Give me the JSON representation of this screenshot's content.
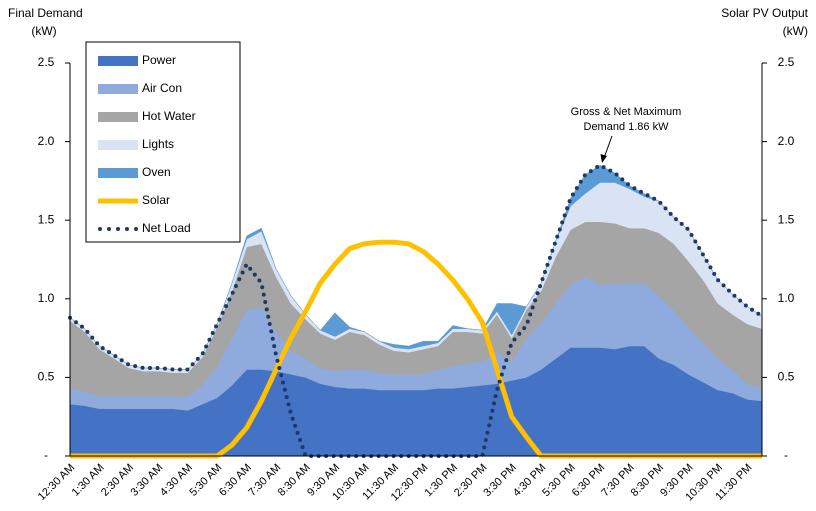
{
  "chart_data": {
    "type": "stacked_area_line",
    "ylabel": [
      "Final Demand",
      "(kW)"
    ],
    "y2label": [
      "Solar PV Output",
      "(kW)"
    ],
    "annotation": [
      "Gross & Net Maximum",
      "Demand 1.86 kW"
    ],
    "categories": [
      "12:30 AM",
      null,
      "1:30 AM",
      null,
      "2:30 AM",
      null,
      "3:30 AM",
      null,
      "4:30 AM",
      null,
      "5:30 AM",
      null,
      "6:30 AM",
      null,
      "7:30 AM",
      null,
      "8:30 AM",
      null,
      "9:30 AM",
      null,
      "10:30 AM",
      null,
      "11:30 AM",
      null,
      "12:30 PM",
      null,
      "1:30 PM",
      null,
      "2:30 PM",
      null,
      "3:30 PM",
      null,
      "4:30 PM",
      null,
      "5:30 PM",
      null,
      "6:30 PM",
      null,
      "7:30 PM",
      null,
      "8:30 PM",
      null,
      "9:30 PM",
      null,
      "10:30 PM",
      null,
      "11:30 PM",
      null
    ],
    "ylim": [
      0,
      2.5
    ],
    "yticks": [
      {
        "value": 0,
        "label": "-"
      },
      0.5,
      {
        "value": 1,
        "label": "1.0"
      },
      1.5,
      {
        "value": 2,
        "label": "2.0"
      },
      2.5
    ],
    "y2lim": [
      0,
      2.5
    ],
    "y2ticks": [
      {
        "value": 0,
        "label": "-"
      },
      0.5,
      {
        "value": 1,
        "label": "1.0"
      },
      1.5,
      {
        "value": 2,
        "label": "2.0"
      },
      2.5
    ],
    "legend": "upper left",
    "series": [
      {
        "name": "Power",
        "kind": "area",
        "color": "#4472c4",
        "values": [
          0.33,
          0.32,
          0.3,
          0.3,
          0.3,
          0.3,
          0.3,
          0.3,
          0.29,
          0.33,
          0.37,
          0.45,
          0.55,
          0.55,
          0.54,
          0.52,
          0.5,
          0.46,
          0.44,
          0.43,
          0.43,
          0.42,
          0.42,
          0.42,
          0.42,
          0.43,
          0.43,
          0.44,
          0.45,
          0.46,
          0.48,
          0.5,
          0.55,
          0.62,
          0.69,
          0.69,
          0.69,
          0.68,
          0.7,
          0.7,
          0.62,
          0.58,
          0.52,
          0.47,
          0.42,
          0.4,
          0.36,
          0.35
        ]
      },
      {
        "name": "Air Con",
        "kind": "area",
        "color": "#8faadc",
        "values": [
          0.1,
          0.09,
          0.08,
          0.08,
          0.08,
          0.08,
          0.08,
          0.08,
          0.09,
          0.12,
          0.2,
          0.3,
          0.38,
          0.4,
          0.25,
          0.15,
          0.12,
          0.1,
          0.1,
          0.12,
          0.12,
          0.11,
          0.1,
          0.1,
          0.1,
          0.12,
          0.14,
          0.15,
          0.15,
          0.2,
          0.12,
          0.25,
          0.3,
          0.35,
          0.4,
          0.45,
          0.4,
          0.42,
          0.4,
          0.4,
          0.4,
          0.35,
          0.3,
          0.25,
          0.2,
          0.15,
          0.1,
          0.08
        ]
      },
      {
        "name": "Hot Water",
        "kind": "area",
        "color": "#a5a5a5",
        "values": [
          0.43,
          0.38,
          0.3,
          0.24,
          0.18,
          0.16,
          0.16,
          0.15,
          0.15,
          0.18,
          0.25,
          0.3,
          0.4,
          0.4,
          0.35,
          0.3,
          0.25,
          0.22,
          0.2,
          0.24,
          0.22,
          0.18,
          0.15,
          0.14,
          0.16,
          0.15,
          0.22,
          0.2,
          0.18,
          0.24,
          0.15,
          0.18,
          0.2,
          0.3,
          0.35,
          0.35,
          0.4,
          0.38,
          0.35,
          0.35,
          0.4,
          0.42,
          0.42,
          0.4,
          0.35,
          0.35,
          0.38,
          0.38
        ]
      },
      {
        "name": "Lights",
        "kind": "area",
        "color": "#dae3f3",
        "values": [
          0.02,
          0.02,
          0.02,
          0.02,
          0.02,
          0.02,
          0.02,
          0.02,
          0.02,
          0.02,
          0.02,
          0.05,
          0.05,
          0.08,
          0.05,
          0.05,
          0.03,
          0.02,
          0.02,
          0.02,
          0.02,
          0.02,
          0.02,
          0.02,
          0.02,
          0.02,
          0.02,
          0.02,
          0.02,
          0.02,
          0.02,
          0.02,
          0.05,
          0.1,
          0.15,
          0.18,
          0.25,
          0.26,
          0.25,
          0.2,
          0.2,
          0.17,
          0.2,
          0.16,
          0.15,
          0.13,
          0.11,
          0.08
        ]
      },
      {
        "name": "Oven",
        "kind": "area",
        "color": "#5b9bd5",
        "values": [
          0,
          0,
          0,
          0,
          0,
          0,
          0,
          0,
          0,
          0,
          0,
          0,
          0.02,
          0.02,
          0,
          0,
          0,
          0,
          0.15,
          0.01,
          0,
          0,
          0.02,
          0.02,
          0.03,
          0.01,
          0.02,
          0,
          0,
          0.05,
          0.2,
          0,
          0,
          0,
          0.05,
          0.12,
          0.11,
          0.06,
          0.02,
          0.02,
          0,
          0,
          0,
          0,
          0,
          0,
          0,
          0
        ]
      },
      {
        "name": "Solar",
        "kind": "line",
        "axis": "y2",
        "color": "#ffc000",
        "values": [
          0,
          0,
          0,
          0,
          0,
          0,
          0,
          0,
          0,
          0,
          0,
          0.07,
          0.18,
          0.35,
          0.55,
          0.75,
          0.92,
          1.1,
          1.22,
          1.32,
          1.35,
          1.36,
          1.36,
          1.35,
          1.3,
          1.22,
          1.12,
          1.0,
          0.85,
          0.55,
          0.25,
          0.12,
          0,
          0,
          0,
          0,
          0,
          0,
          0,
          0,
          0,
          0,
          0,
          0,
          0,
          0,
          0,
          0
        ]
      },
      {
        "name": "Net Load",
        "kind": "dotted",
        "color": "#1f3864",
        "values": [
          0.88,
          0.81,
          0.7,
          0.64,
          0.58,
          0.56,
          0.56,
          0.55,
          0.55,
          0.65,
          0.84,
          1.03,
          1.22,
          1.1,
          0.64,
          0.27,
          0,
          0,
          0,
          0,
          0,
          0,
          0,
          0,
          0,
          0,
          0,
          0,
          0,
          0.42,
          0.72,
          0.83,
          1.1,
          1.37,
          1.64,
          1.79,
          1.85,
          1.8,
          1.72,
          1.67,
          1.62,
          1.52,
          1.44,
          1.28,
          1.12,
          1.03,
          0.95,
          0.89
        ]
      }
    ]
  }
}
